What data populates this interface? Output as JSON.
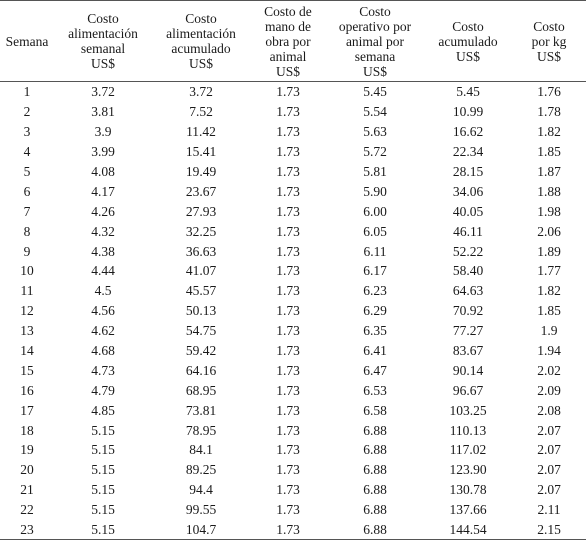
{
  "headers": [
    [
      "Semana"
    ],
    [
      "Costo",
      "alimentación",
      "semanal",
      "US$"
    ],
    [
      "Costo",
      "alimentación",
      "acumulado",
      "US$"
    ],
    [
      "Costo de",
      "mano de",
      "obra por",
      "animal",
      "US$"
    ],
    [
      "Costo",
      "operativo por",
      "animal por",
      "semana",
      "US$"
    ],
    [
      "Costo",
      "acumulado",
      "US$"
    ],
    [
      "Costo",
      "por kg",
      "US$"
    ]
  ],
  "rows": [
    [
      "1",
      "3.72",
      "3.72",
      "1.73",
      "5.45",
      "5.45",
      "1.76"
    ],
    [
      "2",
      "3.81",
      "7.52",
      "1.73",
      "5.54",
      "10.99",
      "1.78"
    ],
    [
      "3",
      "3.9",
      "11.42",
      "1.73",
      "5.63",
      "16.62",
      "1.82"
    ],
    [
      "4",
      "3.99",
      "15.41",
      "1.73",
      "5.72",
      "22.34",
      "1.85"
    ],
    [
      "5",
      "4.08",
      "19.49",
      "1.73",
      "5.81",
      "28.15",
      "1.87"
    ],
    [
      "6",
      "4.17",
      "23.67",
      "1.73",
      "5.90",
      "34.06",
      "1.88"
    ],
    [
      "7",
      "4.26",
      "27.93",
      "1.73",
      "6.00",
      "40.05",
      "1.98"
    ],
    [
      "8",
      "4.32",
      "32.25",
      "1.73",
      "6.05",
      "46.11",
      "2.06"
    ],
    [
      "9",
      "4.38",
      "36.63",
      "1.73",
      "6.11",
      "52.22",
      "1.89"
    ],
    [
      "10",
      "4.44",
      "41.07",
      "1.73",
      "6.17",
      "58.40",
      "1.77"
    ],
    [
      "11",
      "4.5",
      "45.57",
      "1.73",
      "6.23",
      "64.63",
      "1.82"
    ],
    [
      "12",
      "4.56",
      "50.13",
      "1.73",
      "6.29",
      "70.92",
      "1.85"
    ],
    [
      "13",
      "4.62",
      "54.75",
      "1.73",
      "6.35",
      "77.27",
      "1.9"
    ],
    [
      "14",
      "4.68",
      "59.42",
      "1.73",
      "6.41",
      "83.67",
      "1.94"
    ],
    [
      "15",
      "4.73",
      "64.16",
      "1.73",
      "6.47",
      "90.14",
      "2.02"
    ],
    [
      "16",
      "4.79",
      "68.95",
      "1.73",
      "6.53",
      "96.67",
      "2.09"
    ],
    [
      "17",
      "4.85",
      "73.81",
      "1.73",
      "6.58",
      "103.25",
      "2.08"
    ],
    [
      "18",
      "5.15",
      "78.95",
      "1.73",
      "6.88",
      "110.13",
      "2.07"
    ],
    [
      "19",
      "5.15",
      "84.1",
      "1.73",
      "6.88",
      "117.02",
      "2.07"
    ],
    [
      "20",
      "5.15",
      "89.25",
      "1.73",
      "6.88",
      "123.90",
      "2.07"
    ],
    [
      "21",
      "5.15",
      "94.4",
      "1.73",
      "6.88",
      "130.78",
      "2.07"
    ],
    [
      "22",
      "5.15",
      "99.55",
      "1.73",
      "6.88",
      "137.66",
      "2.11"
    ],
    [
      "23",
      "5.15",
      "104.7",
      "1.73",
      "6.88",
      "144.54",
      "2.15"
    ]
  ]
}
